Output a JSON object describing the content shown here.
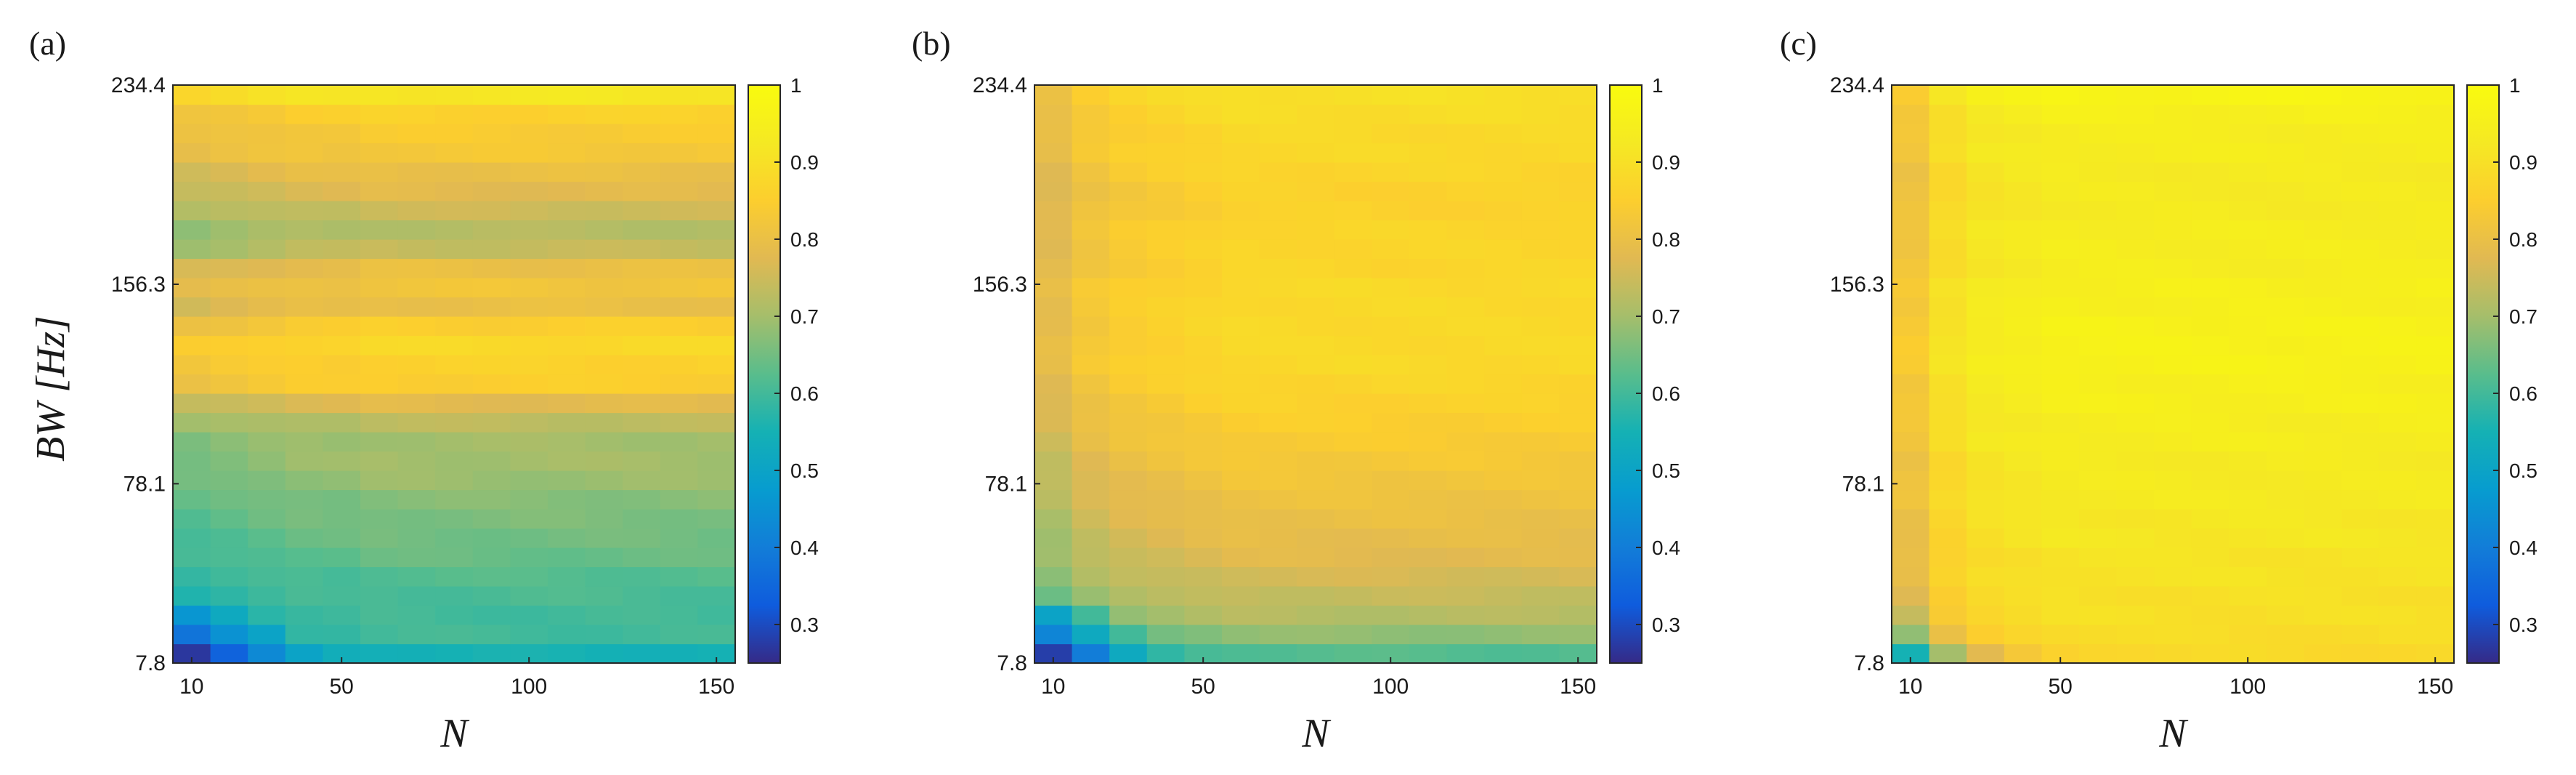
{
  "chart_data": [
    {
      "type": "heatmap",
      "panel_label": "(a)",
      "xlabel": "N",
      "ylabel": "BW [Hz]",
      "x_ticks": [
        "10",
        "50",
        "100",
        "150"
      ],
      "y_ticks": [
        "7.8",
        "78.1",
        "156.3",
        "234.4"
      ],
      "x_range": [
        5,
        155
      ],
      "y_range": [
        7.8,
        234.4
      ],
      "colorbar_ticks": [
        "0.3",
        "0.4",
        "0.5",
        "0.6",
        "0.7",
        "0.8",
        "0.9",
        "1"
      ],
      "color_range": [
        0.25,
        1.0
      ],
      "colormap": "parula",
      "x_columns": [
        10,
        20,
        30,
        40,
        50,
        60,
        70,
        80,
        90,
        100,
        110,
        120,
        130,
        140,
        150
      ],
      "y_rows": [
        7.8,
        15.6,
        23.4,
        31.3,
        39.1,
        46.9,
        54.7,
        62.5,
        70.3,
        78.1,
        85.9,
        93.8,
        101.6,
        109.4,
        117.2,
        125.0,
        132.8,
        140.6,
        148.4,
        156.3,
        164.1,
        171.9,
        179.7,
        187.5,
        195.3,
        203.1,
        210.9,
        218.8,
        226.6,
        234.4
      ],
      "row_values": [
        0.55,
        0.6,
        0.6,
        0.61,
        0.62,
        0.64,
        0.65,
        0.66,
        0.67,
        0.69,
        0.7,
        0.7,
        0.73,
        0.78,
        0.85,
        0.86,
        0.88,
        0.85,
        0.8,
        0.82,
        0.8,
        0.74,
        0.72,
        0.75,
        0.78,
        0.8,
        0.83,
        0.84,
        0.86,
        0.92
      ],
      "col_offsets": [
        -0.04,
        -0.03,
        -0.02,
        -0.01,
        -0.01,
        0,
        0,
        0,
        0,
        0,
        0,
        0,
        0,
        0,
        0
      ],
      "low_corner": [
        {
          "row": 0,
          "values": [
            0.27,
            0.34,
            0.43,
            0.5
          ]
        },
        {
          "row": 1,
          "values": [
            0.38,
            0.45,
            0.5
          ]
        },
        {
          "row": 2,
          "values": [
            0.46,
            0.52
          ]
        }
      ]
    },
    {
      "type": "heatmap",
      "panel_label": "(b)",
      "xlabel": "N",
      "ylabel": "",
      "x_ticks": [
        "10",
        "50",
        "100",
        "150"
      ],
      "y_ticks": [
        "7.8",
        "78.1",
        "156.3",
        "234.4"
      ],
      "x_range": [
        5,
        155
      ],
      "y_range": [
        7.8,
        234.4
      ],
      "colorbar_ticks": [
        "0.3",
        "0.4",
        "0.5",
        "0.6",
        "0.7",
        "0.8",
        "0.9",
        "1"
      ],
      "color_range": [
        0.25,
        1.0
      ],
      "colormap": "parula",
      "x_columns": [
        10,
        20,
        30,
        40,
        50,
        60,
        70,
        80,
        90,
        100,
        110,
        120,
        130,
        140,
        150
      ],
      "y_rows": [
        7.8,
        15.6,
        23.4,
        31.3,
        39.1,
        46.9,
        54.7,
        62.5,
        70.3,
        78.1,
        85.9,
        93.8,
        101.6,
        109.4,
        117.2,
        125.0,
        132.8,
        140.6,
        148.4,
        156.3,
        164.1,
        171.9,
        179.7,
        187.5,
        195.3,
        203.1,
        210.9,
        218.8,
        226.6,
        234.4
      ],
      "row_values": [
        0.62,
        0.68,
        0.72,
        0.74,
        0.76,
        0.78,
        0.79,
        0.8,
        0.81,
        0.82,
        0.83,
        0.84,
        0.85,
        0.86,
        0.87,
        0.88,
        0.88,
        0.88,
        0.88,
        0.88,
        0.87,
        0.87,
        0.87,
        0.86,
        0.86,
        0.87,
        0.88,
        0.88,
        0.89,
        0.9
      ],
      "col_offsets": [
        -0.09,
        -0.05,
        -0.03,
        -0.02,
        -0.01,
        0,
        0,
        0,
        0,
        0,
        0,
        0,
        0,
        0,
        0
      ],
      "low_corner": [
        {
          "row": 0,
          "values": [
            0.28,
            0.4,
            0.52,
            0.58
          ]
        },
        {
          "row": 1,
          "values": [
            0.42,
            0.52,
            0.6
          ]
        },
        {
          "row": 2,
          "values": [
            0.5,
            0.6
          ]
        }
      ]
    },
    {
      "type": "heatmap",
      "panel_label": "(c)",
      "xlabel": "N",
      "ylabel": "",
      "x_ticks": [
        "10",
        "50",
        "100",
        "150"
      ],
      "y_ticks": [
        "7.8",
        "78.1",
        "156.3",
        "234.4"
      ],
      "x_range": [
        5,
        155
      ],
      "y_range": [
        7.8,
        234.4
      ],
      "colorbar_ticks": [
        "0.3",
        "0.4",
        "0.5",
        "0.6",
        "0.7",
        "0.8",
        "0.9",
        "1"
      ],
      "color_range": [
        0.25,
        1.0
      ],
      "colormap": "parula",
      "x_columns": [
        10,
        20,
        30,
        40,
        50,
        60,
        70,
        80,
        90,
        100,
        110,
        120,
        130,
        140,
        150
      ],
      "y_rows": [
        7.8,
        15.6,
        23.4,
        31.3,
        39.1,
        46.9,
        54.7,
        62.5,
        70.3,
        78.1,
        85.9,
        93.8,
        101.6,
        109.4,
        117.2,
        125.0,
        132.8,
        140.6,
        148.4,
        156.3,
        164.1,
        171.9,
        179.7,
        187.5,
        195.3,
        203.1,
        210.9,
        218.8,
        226.6,
        234.4
      ],
      "row_values": [
        0.88,
        0.89,
        0.9,
        0.9,
        0.91,
        0.91,
        0.92,
        0.92,
        0.93,
        0.93,
        0.93,
        0.94,
        0.94,
        0.95,
        0.95,
        0.96,
        0.96,
        0.96,
        0.95,
        0.95,
        0.94,
        0.94,
        0.94,
        0.93,
        0.93,
        0.93,
        0.94,
        0.94,
        0.95,
        0.97
      ],
      "col_offsets": [
        -0.12,
        -0.05,
        -0.02,
        -0.01,
        0,
        0,
        0,
        0,
        0,
        0,
        0,
        0,
        0,
        0,
        0
      ],
      "low_corner": [
        {
          "row": 0,
          "values": [
            0.55,
            0.7,
            0.78,
            0.83,
            0.86
          ]
        },
        {
          "row": 1,
          "values": [
            0.68,
            0.8,
            0.85
          ]
        },
        {
          "row": 2,
          "values": [
            0.74,
            0.84
          ]
        }
      ]
    }
  ]
}
